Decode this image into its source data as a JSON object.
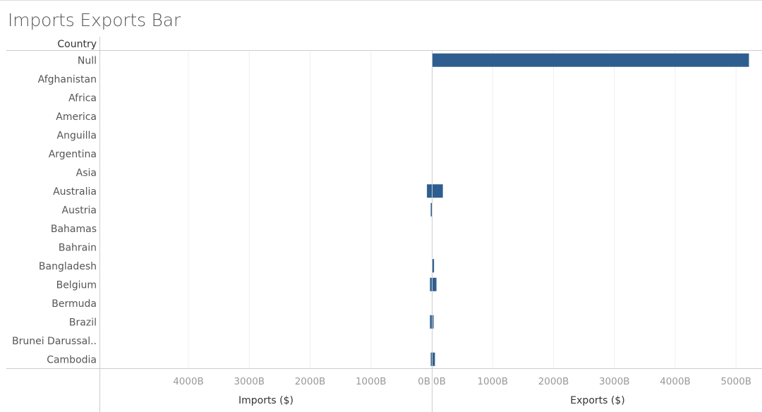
{
  "title": "Imports Exports Bar",
  "row_header": "Country",
  "colors": {
    "bar": "#2e5e8f",
    "grid": "#efefef",
    "axis_line": "#cccccc",
    "tick_text": "#999999",
    "label_text": "#555555",
    "header_text": "#333333"
  },
  "chart_data": {
    "type": "bar",
    "orientation": "horizontal",
    "categories": [
      "Null",
      "Afghanistan",
      "Africa",
      "America",
      "Anguilla",
      "Argentina",
      "Asia",
      "Australia",
      "Austria",
      "Bahamas",
      "Bahrain",
      "Bangladesh",
      "Belgium",
      "Bermuda",
      "Brazil",
      "Brunei Darussal..",
      "Cambodia"
    ],
    "series": [
      {
        "name": "Imports ($)",
        "direction": "left",
        "values": [
          0,
          0,
          0,
          0,
          0,
          0,
          0,
          80,
          10,
          0,
          0,
          0,
          30,
          0,
          30,
          0,
          10
        ]
      },
      {
        "name": "Exports ($)",
        "direction": "right",
        "values": [
          5200,
          0,
          0,
          0,
          0,
          0,
          0,
          170,
          0,
          0,
          0,
          25,
          65,
          0,
          10,
          0,
          40
        ]
      }
    ],
    "value_unit": "B",
    "imports_axis": {
      "label": "Imports ($)",
      "ticks": [
        4000,
        3000,
        2000,
        1000,
        0
      ],
      "tick_labels": [
        "4000B",
        "3000B",
        "2000B",
        "1000B",
        "0B"
      ],
      "range": [
        0,
        4800
      ]
    },
    "exports_axis": {
      "label": "Exports ($)",
      "ticks": [
        0,
        1000,
        2000,
        3000,
        4000,
        5000
      ],
      "tick_labels": [
        "0B",
        "1000B",
        "2000B",
        "3000B",
        "4000B",
        "5000B"
      ],
      "range": [
        0,
        5400
      ]
    },
    "grid": true
  }
}
